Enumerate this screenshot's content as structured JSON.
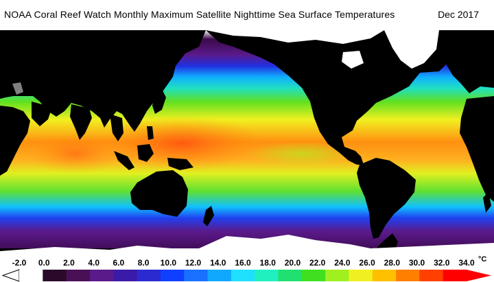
{
  "header": {
    "title": "NOAA Coral Reef Watch Monthly Maximum Satellite Nighttime Sea Surface Temperatures",
    "date": "Dec 2017"
  },
  "legend": {
    "unit": "°C",
    "ticks": [
      "-2.0",
      "0.0",
      "2.0",
      "4.0",
      "6.0",
      "8.0",
      "10.0",
      "12.0",
      "14.0",
      "16.0",
      "18.0",
      "20.0",
      "22.0",
      "24.0",
      "26.0",
      "28.0",
      "30.0",
      "32.0",
      "34.0"
    ],
    "colors": [
      "#ffffff",
      "#2a0a2a",
      "#4a1056",
      "#5a1a8a",
      "#3a1aa8",
      "#2a2ad0",
      "#1040ff",
      "#1a70ff",
      "#10a8ff",
      "#20e0ff",
      "#20f0c0",
      "#20e070",
      "#40e020",
      "#a0f020",
      "#f0f020",
      "#ffc000",
      "#ff8000",
      "#ff4000",
      "#ff0000"
    ]
  },
  "map": {
    "ocean_gradient": [
      {
        "stop": 0.0,
        "color": "#ffffff"
      },
      {
        "stop": 0.04,
        "color": "#3a0a4a"
      },
      {
        "stop": 0.11,
        "color": "#5a1a8a"
      },
      {
        "stop": 0.16,
        "color": "#2030e0"
      },
      {
        "stop": 0.21,
        "color": "#10b0ff"
      },
      {
        "stop": 0.26,
        "color": "#20e0c0"
      },
      {
        "stop": 0.32,
        "color": "#60e020"
      },
      {
        "stop": 0.4,
        "color": "#f0f020"
      },
      {
        "stop": 0.5,
        "color": "#ff9010"
      },
      {
        "stop": 0.58,
        "color": "#ffb020"
      },
      {
        "stop": 0.64,
        "color": "#e0f020"
      },
      {
        "stop": 0.72,
        "color": "#60e030"
      },
      {
        "stop": 0.79,
        "color": "#10c0ff"
      },
      {
        "stop": 0.84,
        "color": "#2040f0"
      },
      {
        "stop": 0.9,
        "color": "#5a1a8a"
      },
      {
        "stop": 1.0,
        "color": "#3a0a4a"
      }
    ],
    "land_color": "#000000",
    "ice_color": "#ffffff",
    "missing_color": "#808080"
  }
}
